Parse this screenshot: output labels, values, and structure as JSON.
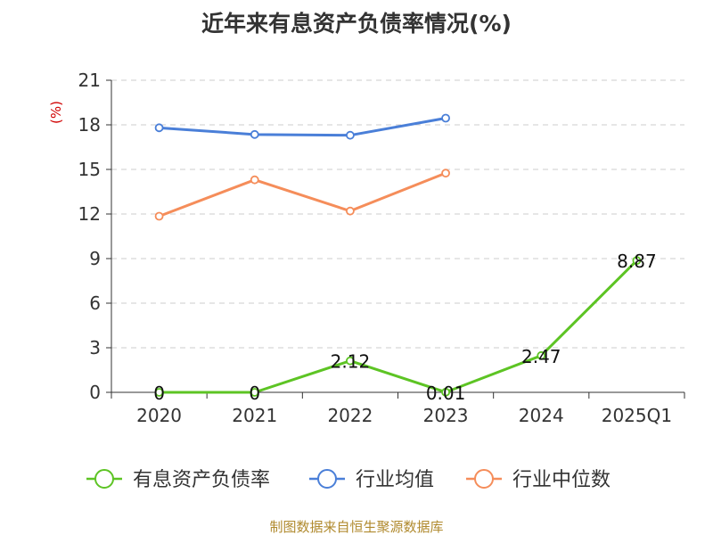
{
  "chart_data": {
    "type": "line",
    "title": "近年来有息资产负债率情况(%)",
    "ylabel": "(%)",
    "ylim": [
      0,
      21
    ],
    "yticks": [
      "0",
      "3",
      "6",
      "9",
      "12",
      "15",
      "18",
      "21"
    ],
    "categories": [
      "2020",
      "2021",
      "2022",
      "2023",
      "2024",
      "2025Q1"
    ],
    "grid": true,
    "legend_position": "bottom",
    "series": [
      {
        "name": "有息资产负债率",
        "color": "#5dc424",
        "values": [
          0,
          0,
          2.12,
          0.01,
          2.47,
          8.87
        ],
        "labels": [
          "0",
          "0",
          "2.12",
          "0.01",
          "2.47",
          "8.87"
        ]
      },
      {
        "name": "行业均值",
        "color": "#4a7fd8",
        "values": [
          17.8,
          17.35,
          17.3,
          18.45,
          null,
          null
        ],
        "labels": []
      },
      {
        "name": "行业中位数",
        "color": "#f58d5a",
        "values": [
          11.85,
          14.3,
          12.2,
          14.75,
          null,
          null
        ],
        "labels": []
      }
    ]
  },
  "source": "制图数据来自恒生聚源数据库"
}
